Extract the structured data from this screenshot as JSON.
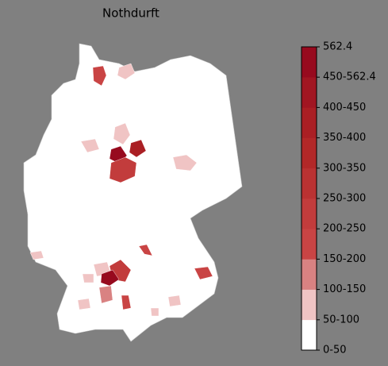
{
  "title": "Nothdurft",
  "colorbar": {
    "labels": [
      "0-50",
      "50-100",
      "100-150",
      "150-200",
      "200-250",
      "250-300",
      "300-350",
      "350-400",
      "400-450",
      "450-562.4",
      "562.4"
    ],
    "colors": [
      "#ffffff",
      "#f0c4c4",
      "#d98282",
      "#c94444",
      "#c23c3c",
      "#ba3232",
      "#b22828",
      "#aa1f24",
      "#a11622",
      "#970a1e"
    ]
  }
}
